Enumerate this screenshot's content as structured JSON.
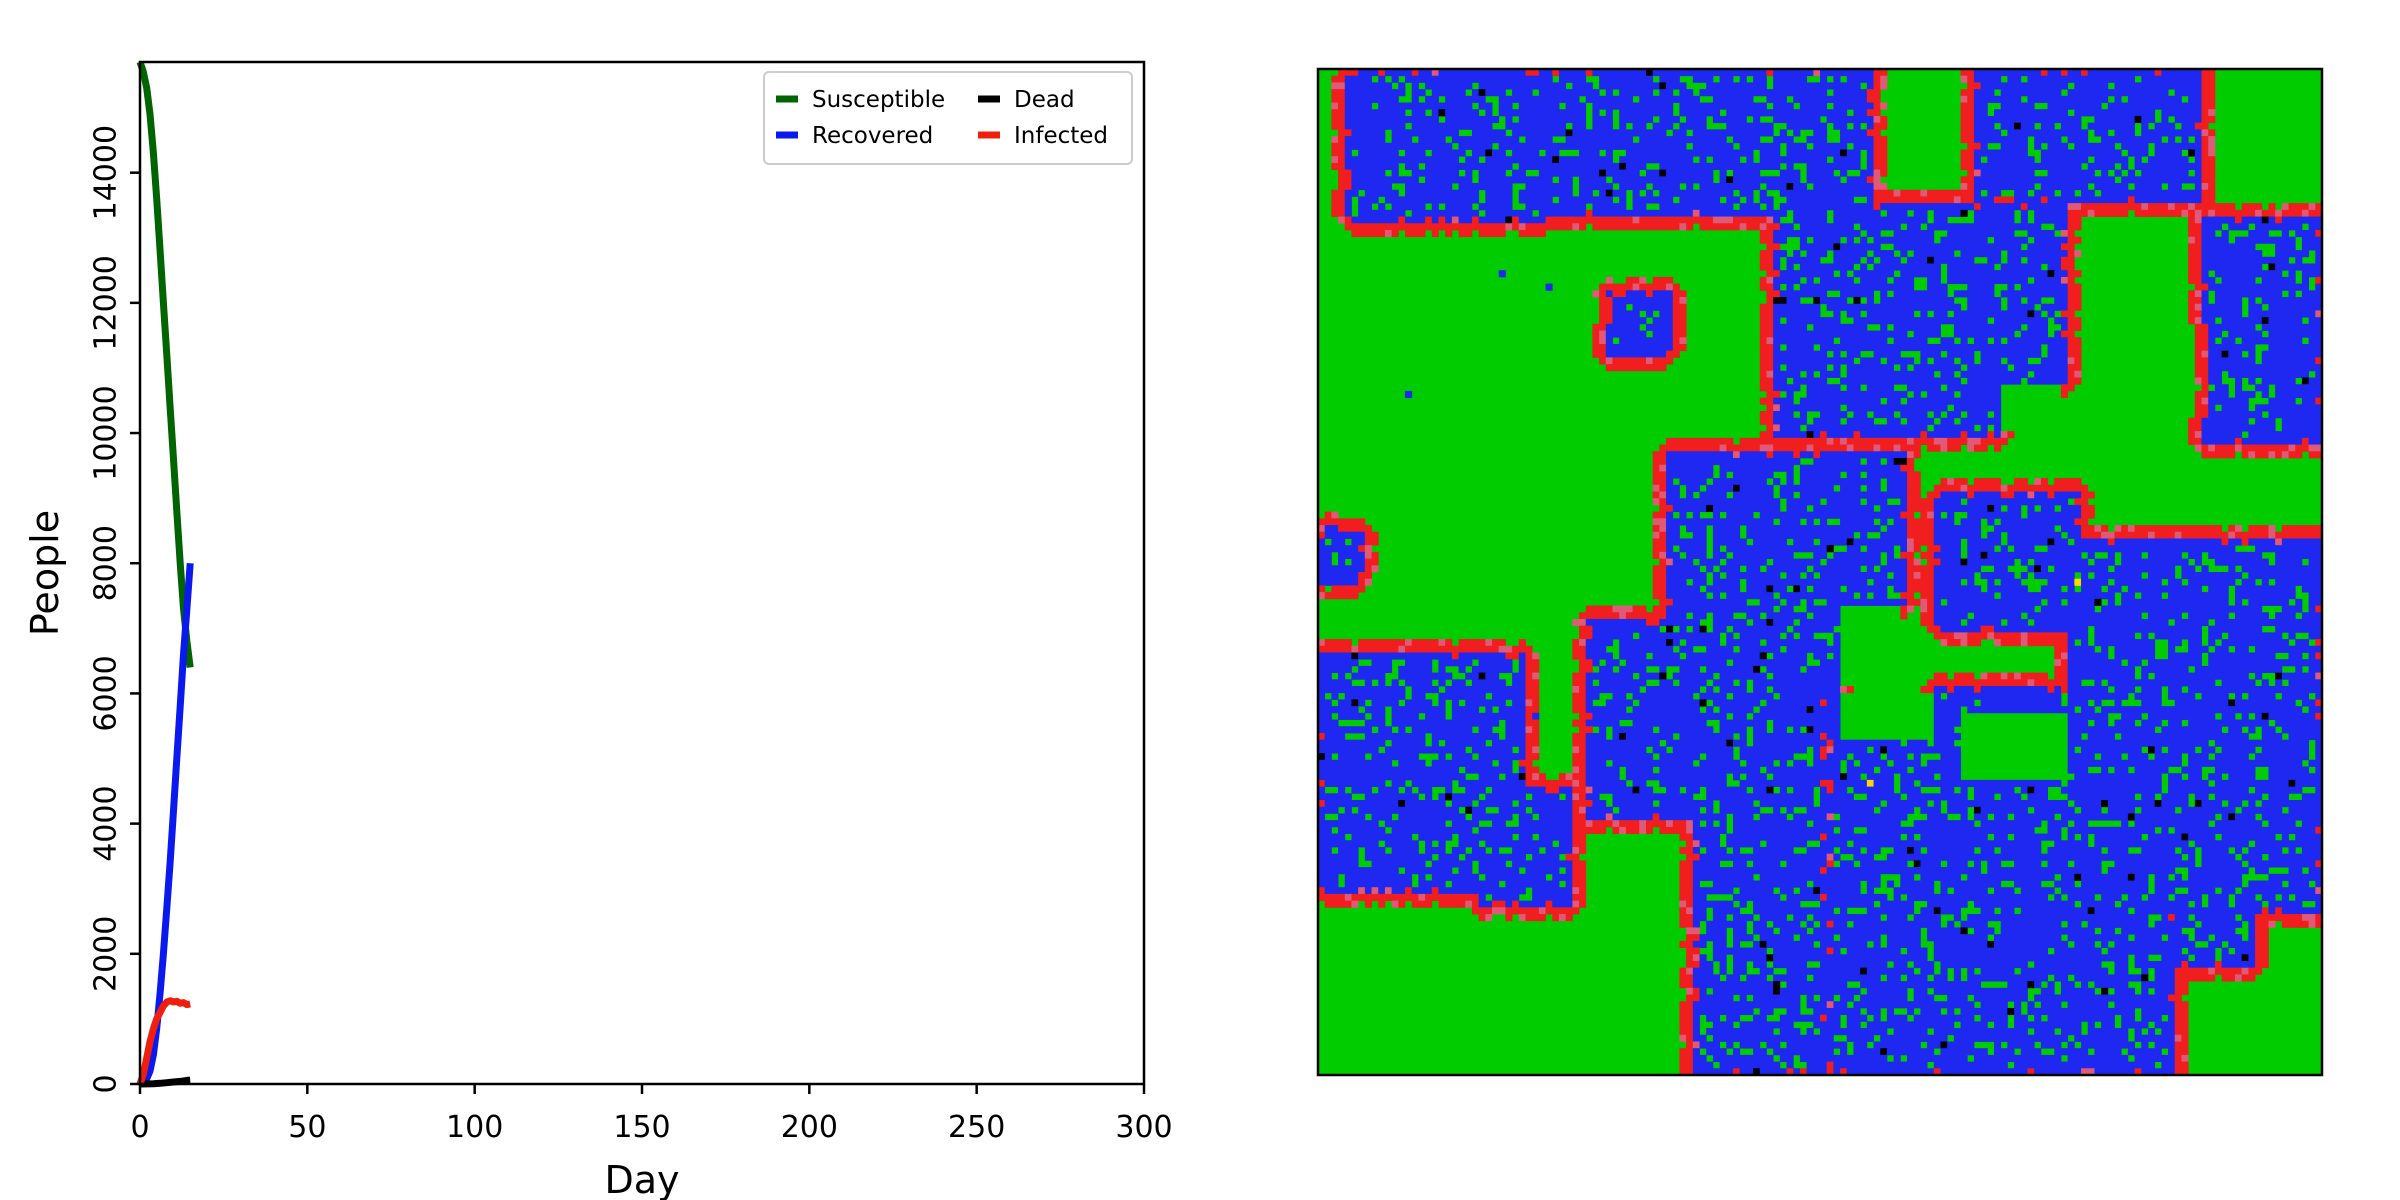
{
  "chart_data": [
    {
      "type": "line",
      "title": "",
      "xlabel": "Day",
      "ylabel": "People",
      "xlim": [
        0,
        300
      ],
      "ylim": [
        0,
        15700
      ],
      "xticks": [
        "0",
        "50",
        "100",
        "150",
        "200",
        "250",
        "300"
      ],
      "yticks": [
        "0",
        "2000",
        "4000",
        "6000",
        "8000",
        "10000",
        "12000",
        "14000"
      ],
      "grid": false,
      "legend": {
        "placement": "top-right",
        "columns": 2
      },
      "series": [
        {
          "name": "Susceptible",
          "color": "#006400",
          "x": [
            0,
            1,
            2,
            3,
            4,
            5,
            6,
            7,
            8,
            9,
            10,
            11,
            12,
            13,
            14,
            15
          ],
          "values": [
            15700,
            15550,
            15300,
            14900,
            14300,
            13600,
            12800,
            12000,
            11200,
            10400,
            9600,
            8800,
            8000,
            7300,
            6800,
            6400
          ]
        },
        {
          "name": "Recovered",
          "color": "#0a1aee",
          "x": [
            0,
            1,
            2,
            3,
            4,
            5,
            6,
            7,
            8,
            9,
            10,
            11,
            12,
            13,
            14,
            15
          ],
          "values": [
            0,
            20,
            80,
            200,
            450,
            850,
            1400,
            2000,
            2700,
            3400,
            4200,
            5000,
            5800,
            6600,
            7300,
            8000
          ]
        },
        {
          "name": "Dead",
          "color": "#000000",
          "x": [
            0,
            2,
            4,
            6,
            8,
            10,
            12,
            14,
            15
          ],
          "values": [
            0,
            2,
            5,
            10,
            20,
            30,
            40,
            55,
            60
          ]
        },
        {
          "name": "Infected",
          "color": "#f01e0e",
          "x": [
            0,
            1,
            2,
            3,
            4,
            5,
            6,
            7,
            8,
            9,
            10,
            11,
            12,
            13,
            14,
            15
          ],
          "values": [
            0,
            150,
            400,
            650,
            850,
            1000,
            1100,
            1200,
            1260,
            1280,
            1260,
            1270,
            1240,
            1250,
            1220,
            1230
          ]
        }
      ]
    },
    {
      "type": "heatmap",
      "title": "",
      "description_colors": {
        "susceptible": "#00cc00",
        "recovered": "#1e28f0",
        "infected": "#f01e1e",
        "infected_light": "#e05a78",
        "dead": "#000000",
        "exposed": "#ffd700"
      },
      "grid_size": [
        150,
        150
      ]
    }
  ]
}
